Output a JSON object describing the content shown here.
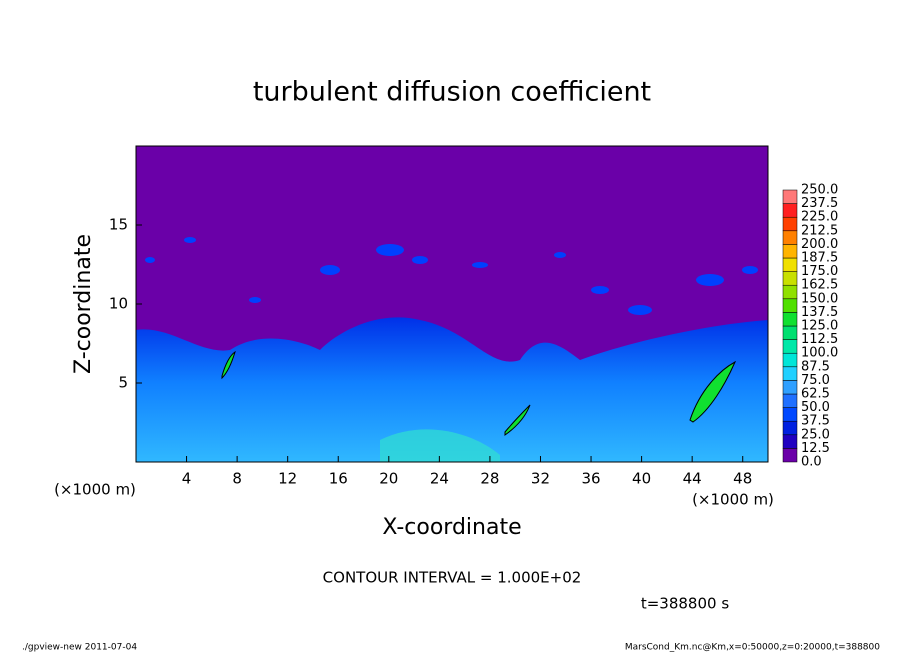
{
  "chart_data": {
    "type": "contour",
    "title": "turbulent diffusion coefficient",
    "xlabel": "X-coordinate",
    "ylabel": "Z-coordinate",
    "xunit": "(×1000 m)",
    "yunit": "(×1000 m)",
    "xlim": [
      0,
      50
    ],
    "xticks": [
      4,
      8,
      12,
      16,
      20,
      24,
      28,
      32,
      36,
      40,
      44,
      48
    ],
    "ylim": [
      0,
      20
    ],
    "yticks": [
      5,
      10,
      15
    ],
    "levels": [
      {
        "value": 0,
        "label": "0.0"
      },
      12.5,
      {
        "value": 25,
        "label": "25.0"
      },
      37.5,
      {
        "value": 50,
        "label": "50.0"
      },
      62.5,
      {
        "value": 75,
        "label": "75.0"
      },
      87.5,
      {
        "value": 100,
        "label": "100.0"
      },
      112.5,
      {
        "value": 125,
        "label": "125.0"
      },
      137.5,
      {
        "value": 150,
        "label": "150.0"
      },
      162.5,
      {
        "value": 175,
        "label": "175.0"
      },
      187.5,
      {
        "value": 200,
        "label": "200.0"
      },
      212.5,
      {
        "value": 225,
        "label": "225.0"
      },
      237.5,
      {
        "value": 250,
        "label": "250.0"
      }
    ],
    "colors": [
      "#6a00a8",
      "#2000c0",
      "#0020e0",
      "#0048ff",
      "#2070ff",
      "#30a0ff",
      "#20d0ff",
      "#00e6d8",
      "#00e8a8",
      "#00e070",
      "#10e030",
      "#50e000",
      "#90e000",
      "#c8e000",
      "#f0e000",
      "#ffb400",
      "#ff8000",
      "#ff4000",
      "#ff2020",
      "#ff7878"
    ],
    "annotation": "CONTOUR INTERVAL = 1.000E+02",
    "time": "t=388800 s",
    "footer_left": "./gpview-new  2011-07-04",
    "footer_right": "MarsCond_Km.nc@Km,x=0:50000,z=0:20000,t=388800"
  }
}
